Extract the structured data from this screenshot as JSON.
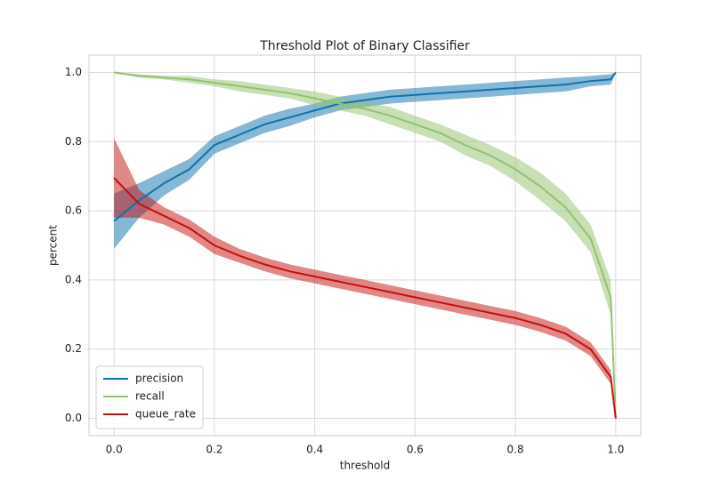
{
  "chart_data": {
    "type": "line",
    "title": "Threshold Plot of Binary Classifier",
    "xlabel": "threshold",
    "ylabel": "percent",
    "x": [
      0,
      0.05,
      0.1,
      0.15,
      0.2,
      0.25,
      0.3,
      0.35,
      0.4,
      0.45,
      0.5,
      0.55,
      0.6,
      0.65,
      0.7,
      0.75,
      0.8,
      0.85,
      0.9,
      0.95,
      0.99,
      1.0
    ],
    "series": [
      {
        "name": "precision",
        "color": "#0e72ad",
        "values": [
          0.57,
          0.63,
          0.68,
          0.72,
          0.79,
          0.82,
          0.85,
          0.87,
          0.89,
          0.91,
          0.92,
          0.93,
          0.935,
          0.94,
          0.945,
          0.95,
          0.955,
          0.96,
          0.965,
          0.975,
          0.98,
          1.0
        ],
        "lower": [
          0.49,
          0.58,
          0.645,
          0.69,
          0.765,
          0.795,
          0.825,
          0.845,
          0.87,
          0.89,
          0.9,
          0.91,
          0.915,
          0.92,
          0.925,
          0.93,
          0.935,
          0.94,
          0.945,
          0.96,
          0.965,
          1.0
        ],
        "upper": [
          0.65,
          0.68,
          0.715,
          0.75,
          0.815,
          0.845,
          0.875,
          0.895,
          0.91,
          0.93,
          0.94,
          0.95,
          0.955,
          0.96,
          0.965,
          0.97,
          0.975,
          0.98,
          0.985,
          0.99,
          0.995,
          1.0
        ]
      },
      {
        "name": "recall",
        "color": "#94c16e",
        "values": [
          1.0,
          0.99,
          0.985,
          0.98,
          0.97,
          0.96,
          0.95,
          0.94,
          0.925,
          0.91,
          0.895,
          0.875,
          0.85,
          0.825,
          0.79,
          0.76,
          0.72,
          0.67,
          0.61,
          0.52,
          0.35,
          0
        ],
        "lower": [
          1.0,
          0.985,
          0.98,
          0.97,
          0.96,
          0.945,
          0.935,
          0.925,
          0.905,
          0.89,
          0.875,
          0.85,
          0.825,
          0.8,
          0.76,
          0.73,
          0.685,
          0.63,
          0.57,
          0.48,
          0.3,
          0
        ],
        "upper": [
          1.0,
          0.995,
          0.99,
          0.99,
          0.98,
          0.975,
          0.965,
          0.955,
          0.945,
          0.93,
          0.915,
          0.9,
          0.875,
          0.85,
          0.82,
          0.79,
          0.755,
          0.71,
          0.65,
          0.56,
          0.4,
          0
        ]
      },
      {
        "name": "queue_rate",
        "color": "#c4100e",
        "values": [
          0.695,
          0.62,
          0.585,
          0.55,
          0.5,
          0.47,
          0.445,
          0.425,
          0.41,
          0.395,
          0.38,
          0.365,
          0.35,
          0.335,
          0.32,
          0.305,
          0.29,
          0.27,
          0.245,
          0.2,
          0.12,
          0
        ],
        "lower": [
          0.58,
          0.58,
          0.56,
          0.525,
          0.475,
          0.45,
          0.425,
          0.405,
          0.39,
          0.375,
          0.36,
          0.345,
          0.33,
          0.315,
          0.3,
          0.285,
          0.27,
          0.25,
          0.225,
          0.18,
          0.1,
          0
        ],
        "upper": [
          0.81,
          0.66,
          0.61,
          0.575,
          0.525,
          0.49,
          0.465,
          0.445,
          0.43,
          0.415,
          0.4,
          0.385,
          0.37,
          0.355,
          0.34,
          0.325,
          0.31,
          0.29,
          0.265,
          0.22,
          0.14,
          0
        ]
      }
    ],
    "xlim": [
      -0.05,
      1.05
    ],
    "ylim": [
      -0.05,
      1.05
    ],
    "xticks": [
      {
        "value": 0,
        "label": "0.0"
      },
      0.2,
      0.4,
      0.6,
      0.8,
      {
        "value": 1,
        "label": "1.0"
      }
    ],
    "yticks": [
      {
        "value": 0,
        "label": "0.0"
      },
      0.2,
      0.4,
      0.6,
      0.8,
      {
        "value": 1,
        "label": "1.0"
      }
    ],
    "grid": true,
    "legend": "lower left"
  }
}
